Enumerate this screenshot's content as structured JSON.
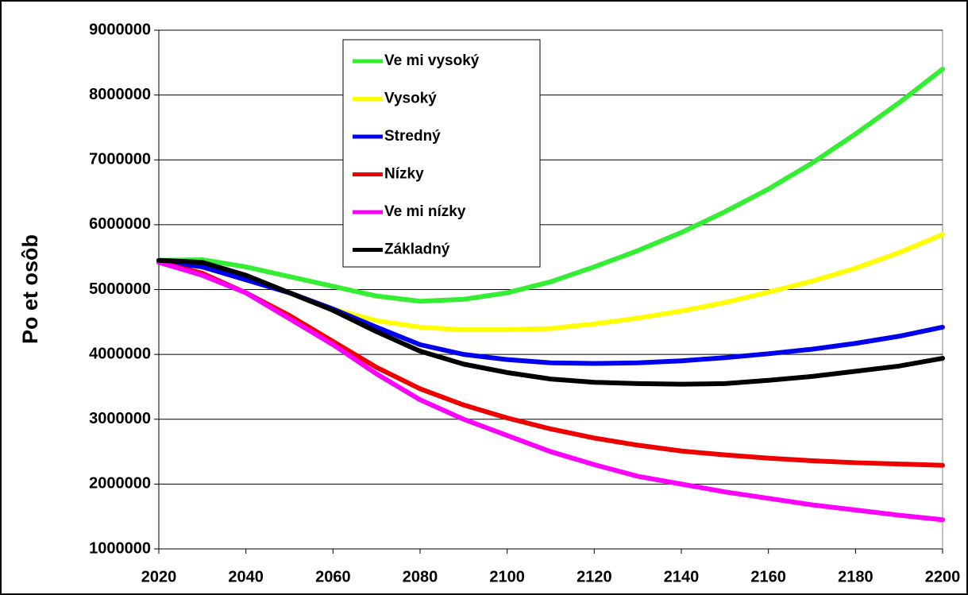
{
  "chart_data": {
    "type": "line",
    "y_label": "Po et osôb",
    "x": [
      2020,
      2030,
      2040,
      2050,
      2060,
      2070,
      2080,
      2090,
      2100,
      2110,
      2120,
      2130,
      2140,
      2150,
      2160,
      2170,
      2180,
      2190,
      2200
    ],
    "xlim": [
      2020,
      2200
    ],
    "xticks": [
      2020,
      2040,
      2060,
      2080,
      2100,
      2120,
      2140,
      2160,
      2180,
      2200
    ],
    "ylim": [
      1000000,
      9000000
    ],
    "yticks": [
      1000000,
      2000000,
      3000000,
      4000000,
      5000000,
      6000000,
      7000000,
      8000000,
      9000000
    ],
    "grid": true,
    "series": [
      {
        "name": "Ve mi vysoký",
        "color": "#33ee33",
        "values": [
          5450000,
          5460000,
          5350000,
          5200000,
          5050000,
          4900000,
          4820000,
          4850000,
          4950000,
          5120000,
          5350000,
          5600000,
          5880000,
          6200000,
          6550000,
          6950000,
          7400000,
          7880000,
          8400000
        ]
      },
      {
        "name": "Vysoký",
        "color": "#ffff00",
        "values": [
          5430000,
          5400000,
          5200000,
          4950000,
          4700000,
          4520000,
          4420000,
          4380000,
          4380000,
          4400000,
          4470000,
          4560000,
          4670000,
          4800000,
          4960000,
          5130000,
          5330000,
          5570000,
          5850000
        ]
      },
      {
        "name": "Stredný",
        "color": "#0000ee",
        "values": [
          5430000,
          5350000,
          5150000,
          4950000,
          4700000,
          4420000,
          4150000,
          4000000,
          3920000,
          3870000,
          3860000,
          3870000,
          3900000,
          3950000,
          4010000,
          4080000,
          4170000,
          4280000,
          4420000
        ]
      },
      {
        "name": "Nízky",
        "color": "#ee0000",
        "values": [
          5420000,
          5250000,
          4950000,
          4600000,
          4200000,
          3800000,
          3470000,
          3220000,
          3020000,
          2850000,
          2710000,
          2600000,
          2510000,
          2450000,
          2400000,
          2360000,
          2330000,
          2310000,
          2290000
        ]
      },
      {
        "name": "Ve mi nízky",
        "color": "#ff00ff",
        "values": [
          5420000,
          5220000,
          4950000,
          4550000,
          4150000,
          3700000,
          3300000,
          3000000,
          2750000,
          2500000,
          2300000,
          2120000,
          2000000,
          1880000,
          1780000,
          1680000,
          1600000,
          1520000,
          1450000
        ]
      },
      {
        "name": "Základný",
        "color": "#000000",
        "values": [
          5450000,
          5420000,
          5220000,
          4950000,
          4680000,
          4350000,
          4050000,
          3850000,
          3720000,
          3620000,
          3570000,
          3550000,
          3540000,
          3550000,
          3600000,
          3660000,
          3740000,
          3820000,
          3940000
        ]
      }
    ]
  }
}
